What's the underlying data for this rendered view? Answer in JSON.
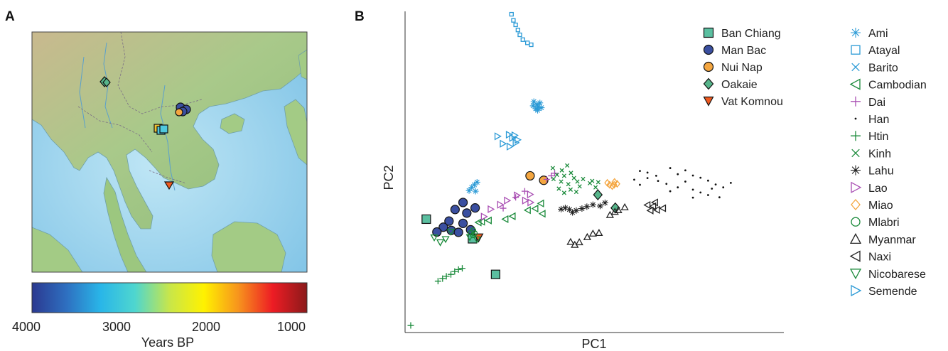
{
  "panels": {
    "a_label": "A",
    "b_label": "B"
  },
  "map": {
    "sites": [
      {
        "name": "Ban Chiang",
        "shape": "square",
        "color": "#4aa88a"
      },
      {
        "name": "Man Bac",
        "shape": "circle",
        "color": "#3a4fa0"
      },
      {
        "name": "Nui Nap",
        "shape": "circle",
        "color": "#f4a640"
      },
      {
        "name": "Oakaie",
        "shape": "diamond",
        "color": "#57b58b"
      },
      {
        "name": "Vat Komnou",
        "shape": "tri-down",
        "color": "#f05a20"
      }
    ]
  },
  "colorbar": {
    "title": "Years BP",
    "ticks": [
      "4000",
      "3000",
      "2000",
      "1000"
    ],
    "colors": [
      "#2b3990",
      "#2e6fc0",
      "#29b6e8",
      "#4fd6cf",
      "#c8e64a",
      "#fff200",
      "#f7941d",
      "#ed1c24",
      "#8b1a1a"
    ]
  },
  "chart_data": {
    "type": "scatter",
    "title": "",
    "xlabel": "PC1",
    "ylabel": "PC2",
    "xlim": [
      0,
      1
    ],
    "ylim": [
      0,
      1
    ],
    "grid": false,
    "legend_placement": "right",
    "series": [
      {
        "name": "Ban Chiang",
        "marker": "filled-square",
        "color": "#5bbfa0",
        "points": [
          [
            0.056,
            0.353
          ],
          [
            0.178,
            0.292
          ],
          [
            0.239,
            0.181
          ]
        ]
      },
      {
        "name": "Man Bac",
        "marker": "filled-circle",
        "color": "#3a4fa0",
        "points": [
          [
            0.116,
            0.347
          ],
          [
            0.132,
            0.383
          ],
          [
            0.153,
            0.405
          ],
          [
            0.163,
            0.372
          ],
          [
            0.185,
            0.388
          ],
          [
            0.101,
            0.328
          ],
          [
            0.153,
            0.34
          ],
          [
            0.173,
            0.32
          ],
          [
            0.084,
            0.313
          ],
          [
            0.122,
            0.318
          ],
          [
            0.141,
            0.312
          ]
        ]
      },
      {
        "name": "Nui Nap",
        "marker": "filled-circle",
        "color": "#f4a640",
        "points": [
          [
            0.33,
            0.488
          ],
          [
            0.366,
            0.474
          ]
        ]
      },
      {
        "name": "Oakaie",
        "marker": "filled-diamond",
        "color": "#57b58b",
        "points": [
          [
            0.509,
            0.429
          ],
          [
            0.555,
            0.388
          ]
        ]
      },
      {
        "name": "Vat Komnou",
        "marker": "filled-triangle-down",
        "color": "#f05a20",
        "points": [
          [
            0.194,
            0.296
          ]
        ]
      },
      {
        "name": "Ami",
        "marker": "asterisk",
        "color": "#2b9ad6",
        "points": [
          [
            0.34,
            0.719
          ],
          [
            0.348,
            0.71
          ],
          [
            0.352,
            0.703
          ],
          [
            0.345,
            0.697
          ],
          [
            0.356,
            0.715
          ],
          [
            0.36,
            0.7
          ],
          [
            0.338,
            0.706
          ],
          [
            0.35,
            0.692
          ],
          [
            0.176,
            0.452
          ],
          [
            0.183,
            0.46
          ],
          [
            0.19,
            0.468
          ],
          [
            0.169,
            0.442
          ],
          [
            0.186,
            0.44
          ]
        ]
      },
      {
        "name": "Atayal",
        "marker": "open-square",
        "color": "#2b9ad6",
        "points": [
          [
            0.281,
            0.991
          ],
          [
            0.286,
            0.972
          ],
          [
            0.292,
            0.958
          ],
          [
            0.298,
            0.942
          ],
          [
            0.303,
            0.927
          ],
          [
            0.311,
            0.912
          ],
          [
            0.323,
            0.902
          ],
          [
            0.333,
            0.896
          ]
        ]
      },
      {
        "name": "Barito",
        "marker": "x",
        "color": "#2b9ad6",
        "points": []
      },
      {
        "name": "Cambodian",
        "marker": "open-triangle-left",
        "color": "#1a8a3a",
        "points": [
          [
            0.203,
            0.345
          ],
          [
            0.221,
            0.349
          ],
          [
            0.194,
            0.343
          ],
          [
            0.265,
            0.353
          ],
          [
            0.284,
            0.362
          ],
          [
            0.324,
            0.381
          ],
          [
            0.344,
            0.386
          ],
          [
            0.359,
            0.402
          ],
          [
            0.363,
            0.37
          ]
        ]
      },
      {
        "name": "Dai",
        "marker": "plus",
        "color": "#a94fb3",
        "points": [
          [
            0.259,
            0.387
          ],
          [
            0.292,
            0.421
          ],
          [
            0.316,
            0.44
          ],
          [
            0.374,
            0.477
          ],
          [
            0.386,
            0.488
          ],
          [
            0.395,
            0.496
          ]
        ]
      },
      {
        "name": "Han",
        "marker": "dot",
        "color": "#111111",
        "points": [
          [
            0.62,
            0.503
          ],
          [
            0.64,
            0.498
          ],
          [
            0.663,
            0.488
          ],
          [
            0.7,
            0.512
          ],
          [
            0.72,
            0.493
          ],
          [
            0.74,
            0.505
          ],
          [
            0.76,
            0.489
          ],
          [
            0.78,
            0.482
          ],
          [
            0.8,
            0.473
          ],
          [
            0.82,
            0.461
          ],
          [
            0.84,
            0.452
          ],
          [
            0.86,
            0.466
          ],
          [
            0.64,
            0.481
          ],
          [
            0.668,
            0.472
          ],
          [
            0.69,
            0.463
          ],
          [
            0.72,
            0.452
          ],
          [
            0.74,
            0.47
          ],
          [
            0.76,
            0.445
          ],
          [
            0.78,
            0.436
          ],
          [
            0.8,
            0.428
          ],
          [
            0.81,
            0.448
          ],
          [
            0.83,
            0.421
          ],
          [
            0.62,
            0.46
          ],
          [
            0.7,
            0.44
          ],
          [
            0.76,
            0.42
          ],
          [
            0.605,
            0.476
          ]
        ]
      },
      {
        "name": "Htin",
        "marker": "plus",
        "color": "#1a8a3a",
        "points": [
          [
            0.015,
            0.022
          ],
          [
            0.087,
            0.16
          ],
          [
            0.099,
            0.168
          ],
          [
            0.109,
            0.175
          ],
          [
            0.121,
            0.181
          ],
          [
            0.131,
            0.19
          ],
          [
            0.141,
            0.196
          ],
          [
            0.151,
            0.2
          ]
        ]
      },
      {
        "name": "Kinh",
        "marker": "x",
        "color": "#1a8a3a",
        "points": [
          [
            0.392,
            0.478
          ],
          [
            0.401,
            0.491
          ],
          [
            0.412,
            0.47
          ],
          [
            0.42,
            0.488
          ],
          [
            0.431,
            0.462
          ],
          [
            0.438,
            0.497
          ],
          [
            0.446,
            0.481
          ],
          [
            0.455,
            0.47
          ],
          [
            0.461,
            0.455
          ],
          [
            0.414,
            0.505
          ],
          [
            0.406,
            0.448
          ],
          [
            0.428,
            0.52
          ],
          [
            0.452,
            0.438
          ],
          [
            0.47,
            0.478
          ],
          [
            0.488,
            0.465
          ],
          [
            0.503,
            0.452
          ],
          [
            0.39,
            0.512
          ],
          [
            0.42,
            0.435
          ],
          [
            0.437,
            0.445
          ],
          [
            0.494,
            0.472
          ],
          [
            0.51,
            0.468
          ]
        ]
      },
      {
        "name": "Lahu",
        "marker": "asterisk",
        "color": "#222222",
        "points": [
          [
            0.412,
            0.384
          ],
          [
            0.423,
            0.388
          ],
          [
            0.434,
            0.383
          ],
          [
            0.442,
            0.374
          ],
          [
            0.452,
            0.38
          ],
          [
            0.467,
            0.386
          ],
          [
            0.48,
            0.392
          ],
          [
            0.496,
            0.398
          ],
          [
            0.515,
            0.394
          ],
          [
            0.528,
            0.404
          ]
        ]
      },
      {
        "name": "Lao",
        "marker": "open-triangle-right",
        "color": "#a94fb3",
        "points": [
          [
            0.208,
            0.361
          ],
          [
            0.226,
            0.384
          ],
          [
            0.251,
            0.398
          ],
          [
            0.269,
            0.411
          ],
          [
            0.295,
            0.427
          ],
          [
            0.331,
            0.405
          ],
          [
            0.33,
            0.43
          ],
          [
            0.317,
            0.411
          ]
        ]
      },
      {
        "name": "Miao",
        "marker": "open-diamond",
        "color": "#f4a640",
        "points": [
          [
            0.534,
            0.466
          ],
          [
            0.54,
            0.46
          ],
          [
            0.547,
            0.456
          ],
          [
            0.552,
            0.46
          ],
          [
            0.56,
            0.463
          ],
          [
            0.553,
            0.469
          ]
        ]
      },
      {
        "name": "Mlabri",
        "marker": "open-circle",
        "color": "#1a8a3a",
        "points": [
          [
            0.174,
            0.311
          ],
          [
            0.179,
            0.303
          ],
          [
            0.184,
            0.309
          ],
          [
            0.18,
            0.318
          ]
        ]
      },
      {
        "name": "Myanmar",
        "marker": "open-triangle-up",
        "color": "#222222",
        "points": [
          [
            0.437,
            0.282
          ],
          [
            0.448,
            0.273
          ],
          [
            0.46,
            0.281
          ],
          [
            0.481,
            0.297
          ],
          [
            0.496,
            0.308
          ],
          [
            0.512,
            0.31
          ],
          [
            0.541,
            0.366
          ],
          [
            0.554,
            0.376
          ],
          [
            0.563,
            0.381
          ],
          [
            0.58,
            0.39
          ]
        ]
      },
      {
        "name": "Naxi",
        "marker": "open-triangle-left",
        "color": "#222222",
        "points": [
          [
            0.648,
            0.38
          ],
          [
            0.655,
            0.393
          ],
          [
            0.665,
            0.382
          ],
          [
            0.681,
            0.387
          ],
          [
            0.64,
            0.397
          ],
          [
            0.66,
            0.405
          ]
        ]
      },
      {
        "name": "Nicobarese",
        "marker": "open-triangle-down",
        "color": "#1a8a3a",
        "points": [
          [
            0.077,
            0.296
          ],
          [
            0.093,
            0.281
          ],
          [
            0.107,
            0.291
          ],
          [
            0.121,
            0.314
          ],
          [
            0.171,
            0.297
          ],
          [
            0.19,
            0.29
          ]
        ]
      },
      {
        "name": "Semende",
        "marker": "open-triangle-right",
        "color": "#2b9ad6",
        "points": [
          [
            0.244,
            0.611
          ],
          [
            0.274,
            0.616
          ],
          [
            0.289,
            0.614
          ],
          [
            0.258,
            0.588
          ],
          [
            0.292,
            0.591
          ],
          [
            0.276,
            0.579
          ],
          [
            0.283,
            0.606
          ],
          [
            0.297,
            0.6
          ]
        ]
      }
    ]
  },
  "legend_left": [
    {
      "label": "Ban Chiang",
      "marker": "filled-square",
      "color": "#5bbfa0"
    },
    {
      "label": "Man Bac",
      "marker": "filled-circle",
      "color": "#3a4fa0"
    },
    {
      "label": "Nui Nap",
      "marker": "filled-circle",
      "color": "#f4a640"
    },
    {
      "label": "Oakaie",
      "marker": "filled-diamond",
      "color": "#57b58b"
    },
    {
      "label": "Vat Komnou",
      "marker": "filled-triangle-down",
      "color": "#f05a20"
    }
  ],
  "legend_right": [
    {
      "label": "Ami",
      "marker": "asterisk",
      "color": "#2b9ad6"
    },
    {
      "label": "Atayal",
      "marker": "open-square",
      "color": "#2b9ad6"
    },
    {
      "label": "Barito",
      "marker": "x",
      "color": "#2b9ad6"
    },
    {
      "label": "Cambodian",
      "marker": "open-triangle-left",
      "color": "#1a8a3a"
    },
    {
      "label": "Dai",
      "marker": "plus",
      "color": "#a94fb3"
    },
    {
      "label": "Han",
      "marker": "dot",
      "color": "#111111"
    },
    {
      "label": "Htin",
      "marker": "plus",
      "color": "#1a8a3a"
    },
    {
      "label": "Kinh",
      "marker": "x",
      "color": "#1a8a3a"
    },
    {
      "label": "Lahu",
      "marker": "asterisk",
      "color": "#222222"
    },
    {
      "label": "Lao",
      "marker": "open-triangle-right",
      "color": "#a94fb3"
    },
    {
      "label": "Miao",
      "marker": "open-diamond",
      "color": "#f4a640"
    },
    {
      "label": "Mlabri",
      "marker": "open-circle",
      "color": "#1a8a3a"
    },
    {
      "label": "Myanmar",
      "marker": "open-triangle-up",
      "color": "#222222"
    },
    {
      "label": "Naxi",
      "marker": "open-triangle-left",
      "color": "#222222"
    },
    {
      "label": "Nicobarese",
      "marker": "open-triangle-down",
      "color": "#1a8a3a"
    },
    {
      "label": "Semende",
      "marker": "open-triangle-right",
      "color": "#2b9ad6"
    }
  ]
}
